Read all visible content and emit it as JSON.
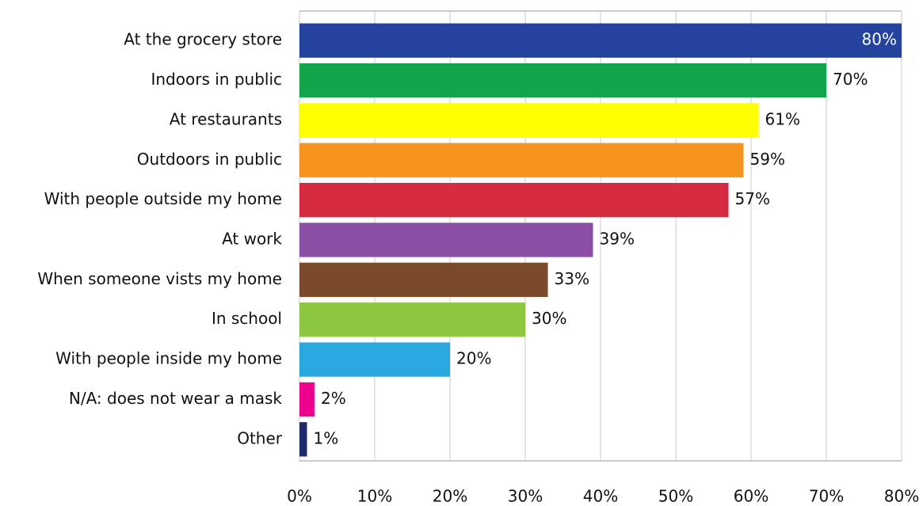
{
  "chart_data": {
    "type": "bar",
    "orientation": "horizontal",
    "categories": [
      "At the grocery store",
      "Indoors in public",
      "At restaurants",
      "Outdoors in public",
      "With people outside my home",
      "At work",
      "When someone vists my home",
      "In school",
      "With people inside my home",
      "N/A: does not wear a mask",
      "Other"
    ],
    "values": [
      80,
      70,
      61,
      59,
      57,
      39,
      33,
      30,
      20,
      2,
      1
    ],
    "value_labels": [
      "80%",
      "70%",
      "61%",
      "59%",
      "57%",
      "39%",
      "33%",
      "30%",
      "20%",
      "2%",
      "1%"
    ],
    "colors": [
      "#24439f",
      "#12a54b",
      "#ffff00",
      "#f7941d",
      "#d62a3e",
      "#8a4fa5",
      "#7a4a2b",
      "#8dc63f",
      "#2aa9e0",
      "#ec008c",
      "#1e2a6a"
    ],
    "xlim": [
      0,
      80
    ],
    "xticks": [
      {
        "value": 0,
        "label": "0%"
      },
      {
        "value": 10,
        "label": "10%"
      },
      {
        "value": 20,
        "label": "20%"
      },
      {
        "value": 30,
        "label": "30%"
      },
      {
        "value": 40,
        "label": "40%"
      },
      {
        "value": 50,
        "label": "50%"
      },
      {
        "value": 60,
        "label": "60%"
      },
      {
        "value": 70,
        "label": "70%"
      },
      {
        "value": 80,
        "label": "80%"
      }
    ],
    "grid": true
  }
}
